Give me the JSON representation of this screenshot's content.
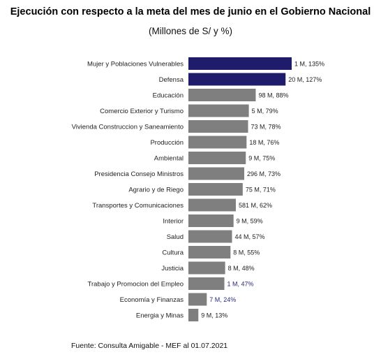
{
  "title": "Ejecución con respecto a la meta del mes de junio en el Gobierno Nacional",
  "subtitle": "(Millones de S/ y %)",
  "source": "Fuente: Consulta Amigable - MEF al 01.07.2021",
  "colors": {
    "highlight": "#1f1c6b",
    "default": "#7f7f7f",
    "label_default": "#222222",
    "label_low": "#2b2b7a"
  },
  "chart_data": {
    "type": "bar",
    "orientation": "horizontal",
    "categories": [
      "Mujer y Poblaciones Vulnerables",
      "Defensa",
      "Educación",
      "Comercio Exterior y Turismo",
      "Vivienda Construccion y Saneamiento",
      "Producción",
      "Ambiental",
      "Presidencia Consejo Ministros",
      "Agrario y de Riego",
      "Transportes y Comunicaciones",
      "Interior",
      "Salud",
      "Cultura",
      "Justicia",
      "Trabajo y Promocion del Empleo",
      "Economía y Finanzas",
      "Energia y Minas"
    ],
    "values": [
      135,
      127,
      88,
      79,
      78,
      76,
      75,
      73,
      71,
      62,
      59,
      57,
      55,
      48,
      47,
      24,
      13
    ],
    "data_labels": [
      "1 M, 135%",
      "20 M, 127%",
      "98 M, 88%",
      "5 M, 79%",
      "73 M, 78%",
      "18 M, 76%",
      "9 M, 75%",
      "296 M, 73%",
      "75 M, 71%",
      "581 M, 62%",
      "9 M, 59%",
      "44 M, 57%",
      "8 M, 55%",
      "8 M, 48%",
      "1 M, 47%",
      "7 M, 24%",
      "9 M, 13%"
    ],
    "highlighted": [
      true,
      true,
      false,
      false,
      false,
      false,
      false,
      false,
      false,
      false,
      false,
      false,
      false,
      false,
      false,
      false,
      false
    ],
    "low_label": [
      false,
      false,
      false,
      false,
      false,
      false,
      false,
      false,
      false,
      false,
      false,
      false,
      false,
      false,
      true,
      true,
      false
    ],
    "xlim": [
      0,
      135
    ],
    "grid": false,
    "legend": "none"
  }
}
